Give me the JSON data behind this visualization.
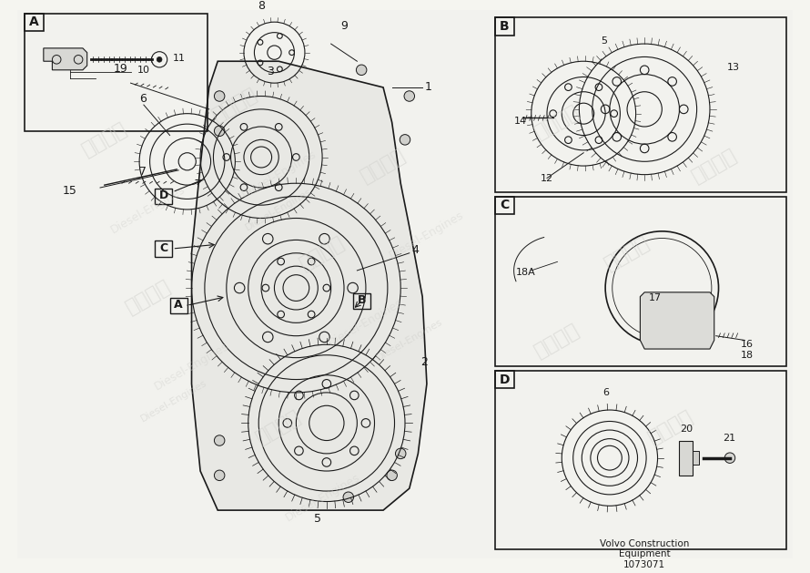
{
  "bg_color": "#f0f0f0",
  "line_color": "#1a1a1a",
  "watermark_color": "#cccccc",
  "title": "Volvo Construction\nEquipment\n1073071",
  "part_labels": {
    "main": [
      "1",
      "2",
      "3",
      "4",
      "5",
      "6",
      "7",
      "8",
      "9",
      "10",
      "11",
      "15",
      "19"
    ],
    "A_box": [
      "A",
      "10",
      "11"
    ],
    "B_box": [
      "B",
      "5",
      "12",
      "13",
      "14"
    ],
    "C_box": [
      "C",
      "16",
      "17",
      "18",
      "18A"
    ],
    "D_box": [
      "D",
      "6",
      "20",
      "21"
    ]
  },
  "callout_labels": [
    "A",
    "B",
    "C",
    "D"
  ]
}
